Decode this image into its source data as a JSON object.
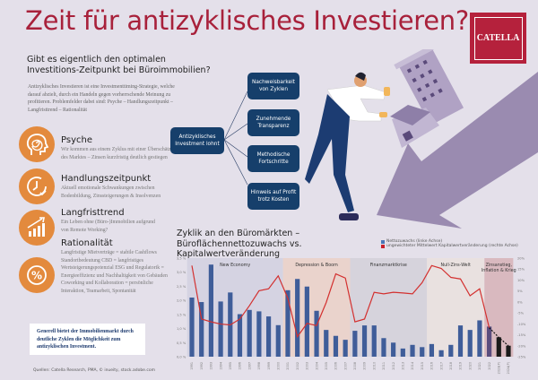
{
  "title": "Zeit für antizyklisches Investieren?",
  "logo": "CATELLA",
  "subtitle": [
    "Gibt es eigentlich den optimalen",
    "Investitions-Zeitpunkt bei Büroimmobilien?"
  ],
  "intro": "Antizyklisches Investieren ist eine Investmenttiming-Strategie, welche darauf abzielt, durch ein Handeln gegen vorherrschende Meinung zu profitieren. Problemfelder dabei sind: Psyche – Handlungszeitpunkt – Langfristtrend – Rationalität",
  "factors": [
    {
      "title": "Psyche",
      "text": "Wir kommen aus einem Zyklus mit einer Überschätzung des Marktes – Zinsen kurzfristig deutlich gestiegen",
      "icon": "head-spiral-icon"
    },
    {
      "title": "Handlungszeitpunkt",
      "text": "Aktuell emotionale Schwankungen zwischen Bodenbildung, Zinssteigerungen & Insolvenzen",
      "icon": "clock-icon"
    },
    {
      "title": "Langfristtrend",
      "text": "Ein Leben ohne (Büro-)Immobilien aufgrund von Remote Working?",
      "icon": "growth-chart-icon"
    },
    {
      "title": "Rationalität",
      "text": "Langfristige Mietverträge = stabile Cashflows Standortbedeutung CBD = langfristiges Wertsteigerungspotenzial ESG und Regulatorik = Energieeffizienz und Nachhaltigkeit von Gebäuden Coworking und Kollaboration = persönliche Interaktion, Teamarbeit, Spontanität",
      "icon": "percent-icon"
    }
  ],
  "callout": "Generell bietet der Immobilienmarkt durch deutliche Zyklen die Möglichkeit zum antizyklischen Investment.",
  "source": "Quellen: Catella Research, PMA, © inueity, stock.adobe.com",
  "diagram": {
    "center": "Antizyklisches Investment lohnt",
    "branches": [
      "Nachweisbarkeit von Zyklen",
      "Zunehmende Transparenz",
      "Methodische Fortschritte",
      "Hinweis auf Profit trotz Kosten"
    ]
  },
  "colors": {
    "accent": "#a8213b",
    "orange": "#e38a3d",
    "navy": "#163f6b",
    "bar": "#3f5d99",
    "line": "#d3302f"
  },
  "chart_data": {
    "type": "bar+line",
    "title": "Zyklik an den Büromärkten – Büroflächennettozuwachs vs. Kapitalwertveränderung",
    "categories": [
      "1991",
      "1992",
      "1993",
      "1994",
      "1995",
      "1996",
      "1997",
      "1998",
      "1999",
      "2000",
      "2001",
      "2002",
      "2003",
      "2004",
      "2005",
      "2006",
      "2007",
      "2008",
      "2009",
      "2010",
      "2011",
      "2012",
      "2013",
      "2014",
      "2015",
      "2016",
      "2017",
      "2018",
      "2019",
      "2020",
      "2021",
      "2022",
      "2023(P)",
      "2024(P)"
    ],
    "series": [
      {
        "name": "Nettozuwachs (linke Achse)",
        "axis": "left",
        "type": "bar",
        "values": [
          2.1,
          1.94,
          3.27,
          1.96,
          2.28,
          1.51,
          1.66,
          1.61,
          1.43,
          1.12,
          2.36,
          2.76,
          2.49,
          1.63,
          0.95,
          0.74,
          0.6,
          0.92,
          1.11,
          1.11,
          0.66,
          0.5,
          0.29,
          0.42,
          0.34,
          0.45,
          0.23,
          0.42,
          1.11,
          0.95,
          1.29,
          1.07,
          0.69,
          0.39
        ]
      },
      {
        "name": "ungewichteter Mittelwert Kapitalwertveränderung (rechte Achse)",
        "axis": "right",
        "type": "line",
        "values": [
          16.6,
          -7.8,
          -9.1,
          -10.1,
          -10.5,
          -7.8,
          -1.7,
          5.1,
          6.0,
          11.9,
          1.7,
          -15.9,
          -9.8,
          -10.8,
          -0.3,
          12.8,
          10.9,
          -9.1,
          -7.8,
          4.4,
          3.7,
          4.4,
          4.1,
          3.7,
          8.8,
          16.6,
          15.3,
          11.2,
          10.5,
          2.8,
          6.0,
          -11.8,
          -16.2,
          -20.0
        ]
      }
    ],
    "left_axis": {
      "ticks": [
        "0,0 %",
        "0,5 %",
        "1,0 %",
        "1,5 %",
        "2,0 %",
        "2,5 %",
        "3,0 %",
        "3,5 %"
      ],
      "range": [
        0,
        3.5
      ]
    },
    "right_axis": {
      "ticks": [
        "-25%",
        "-20%",
        "-15%",
        "-10%",
        "-5%",
        "0%",
        "5%",
        "10%",
        "15%",
        "20%"
      ],
      "range": [
        -25,
        20
      ]
    },
    "periods": [
      {
        "label": "New Economy",
        "from": "1991",
        "to": "2000",
        "color": "#d5d3e2"
      },
      {
        "label": "Depression & Boom",
        "from": "2001",
        "to": "2007",
        "color": "#ead3cc"
      },
      {
        "label": "Finanzmarktkrise",
        "from": "2008",
        "to": "2015",
        "color": "#d6d3dc"
      },
      {
        "label": "Null-Zins-Welt",
        "from": "2016",
        "to": "2021",
        "color": "#e9e1e0"
      },
      {
        "label": "Zinsanstieg, Inflation & Krieg",
        "from": "2022",
        "to": "2024(P)",
        "color": "#d9b9bf"
      }
    ],
    "legend_placement": "top-right",
    "grid": false
  }
}
